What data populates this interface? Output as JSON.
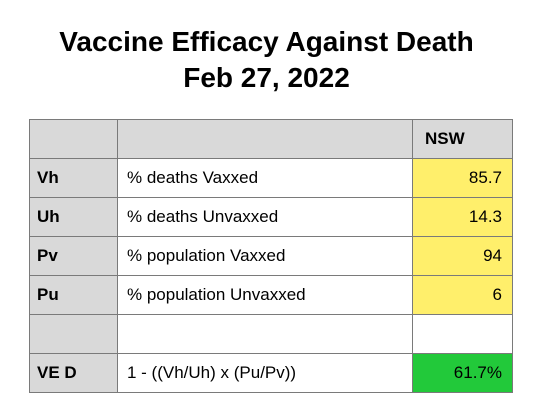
{
  "title": {
    "line1": "Vaccine Efficacy Against Death",
    "line2": "Feb 27, 2022"
  },
  "table": {
    "column_header": "NSW",
    "rows": [
      {
        "code": "Vh",
        "description": "% deaths Vaxxed",
        "value": "85.7"
      },
      {
        "code": "Uh",
        "description": "% deaths Unvaxxed",
        "value": "14.3"
      },
      {
        "code": "Pv",
        "description": "% population Vaxxed",
        "value": "94"
      },
      {
        "code": "Pu",
        "description": "% population Unvaxxed",
        "value": "6"
      },
      {
        "code": "",
        "description": "",
        "value": ""
      },
      {
        "code": "VE D",
        "description": "1 - ((Vh/Uh) x (Pu/Pv))",
        "value": "61.7%"
      }
    ]
  },
  "colors": {
    "header_gray": "#d9d9d9",
    "input_yellow": "#ffef6b",
    "result_green": "#22c93a"
  }
}
